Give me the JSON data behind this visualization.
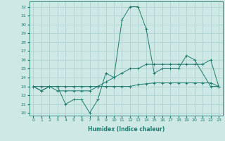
{
  "xlabel": "Humidex (Indice chaleur)",
  "bg_color": "#cde8e5",
  "grid_color": "#aacfcc",
  "line_color": "#1e7b6e",
  "xlim": [
    -0.5,
    23.5
  ],
  "ylim": [
    19.7,
    32.6
  ],
  "yticks": [
    20,
    21,
    22,
    23,
    24,
    25,
    26,
    27,
    28,
    29,
    30,
    31,
    32
  ],
  "xticks": [
    0,
    1,
    2,
    3,
    4,
    5,
    6,
    7,
    8,
    9,
    10,
    11,
    12,
    13,
    14,
    15,
    16,
    17,
    18,
    19,
    20,
    21,
    22,
    23
  ],
  "series": [
    {
      "x": [
        0,
        1,
        2,
        3,
        4,
        5,
        6,
        7,
        8,
        9,
        10,
        11,
        12,
        13,
        14,
        15,
        16,
        17,
        18,
        19,
        20,
        22,
        23
      ],
      "y": [
        23.0,
        22.5,
        23.0,
        23.0,
        21.0,
        21.5,
        21.5,
        20.0,
        21.5,
        24.5,
        24.0,
        30.5,
        32.0,
        32.0,
        29.5,
        24.5,
        25.0,
        25.0,
        25.0,
        26.5,
        26.0,
        23.0,
        23.0
      ]
    },
    {
      "x": [
        0,
        1,
        2,
        3,
        4,
        5,
        6,
        7,
        8,
        9,
        10,
        11,
        12,
        13,
        14,
        15,
        16,
        17,
        18,
        19,
        20,
        21,
        22,
        23
      ],
      "y": [
        23.0,
        22.5,
        23.0,
        22.5,
        22.5,
        22.5,
        22.5,
        22.5,
        23.0,
        23.5,
        24.0,
        24.5,
        25.0,
        25.0,
        25.5,
        25.5,
        25.5,
        25.5,
        25.5,
        25.5,
        25.5,
        25.5,
        26.0,
        23.0
      ]
    },
    {
      "x": [
        0,
        1,
        2,
        3,
        4,
        5,
        6,
        7,
        8,
        9,
        10,
        11,
        12,
        13,
        14,
        15,
        16,
        17,
        18,
        19,
        20,
        21,
        22,
        23
      ],
      "y": [
        23.0,
        23.0,
        23.0,
        23.0,
        23.0,
        23.0,
        23.0,
        23.0,
        23.0,
        23.0,
        23.0,
        23.0,
        23.0,
        23.2,
        23.3,
        23.4,
        23.4,
        23.4,
        23.4,
        23.4,
        23.4,
        23.4,
        23.4,
        23.0
      ]
    }
  ]
}
